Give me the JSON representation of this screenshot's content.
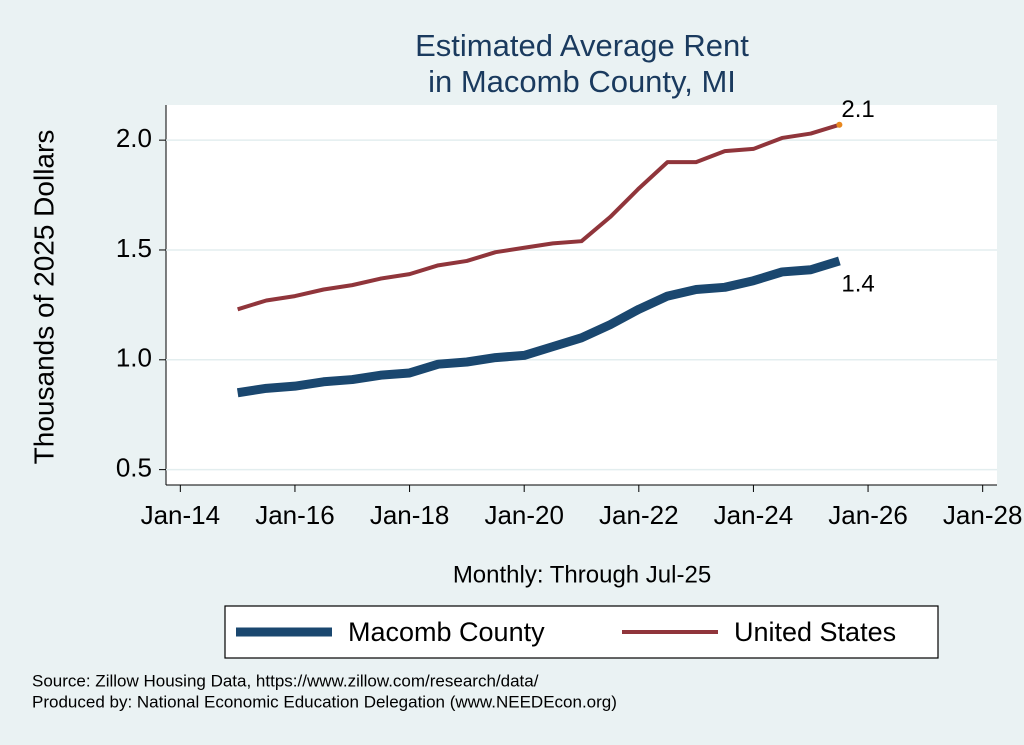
{
  "chart_data": {
    "type": "line",
    "title": [
      "Estimated Average Rent",
      "in Macomb County, MI"
    ],
    "x_label": "Monthly: Through Jul-25",
    "y_label": "Thousands of 2025 Dollars",
    "notes": [
      "Source: Zillow Housing Data, https://www.zillow.com/research/data/",
      "Produced by: National Economic Education Delegation (www.NEEDEcon.org)"
    ],
    "x": [
      "2015-01",
      "2015-07",
      "2016-01",
      "2016-07",
      "2017-01",
      "2017-07",
      "2018-01",
      "2018-07",
      "2019-01",
      "2019-07",
      "2020-01",
      "2020-07",
      "2021-01",
      "2021-07",
      "2022-01",
      "2022-07",
      "2023-01",
      "2023-07",
      "2024-01",
      "2024-07",
      "2025-01",
      "2025-07"
    ],
    "series": [
      {
        "name": "Macomb County",
        "color": "#1a476f",
        "width": 9,
        "values": [
          0.85,
          0.87,
          0.88,
          0.9,
          0.91,
          0.93,
          0.94,
          0.98,
          0.99,
          1.01,
          1.02,
          1.06,
          1.1,
          1.16,
          1.23,
          1.29,
          1.32,
          1.33,
          1.36,
          1.4,
          1.41,
          1.45
        ],
        "end_label": "1.4"
      },
      {
        "name": "United States",
        "color": "#90353b",
        "width": 4,
        "values": [
          1.23,
          1.27,
          1.29,
          1.32,
          1.34,
          1.37,
          1.39,
          1.43,
          1.45,
          1.49,
          1.51,
          1.53,
          1.54,
          1.65,
          1.78,
          1.9,
          1.9,
          1.95,
          1.96,
          2.01,
          2.03,
          2.07
        ],
        "end_label": "2.1",
        "end_marker_color": "#e8871e"
      }
    ],
    "xlim": [
      "2013-10",
      "2028-04"
    ],
    "xticks": [
      {
        "value": "2014-01",
        "label": "Jan-14"
      },
      {
        "value": "2016-01",
        "label": "Jan-16"
      },
      {
        "value": "2018-01",
        "label": "Jan-18"
      },
      {
        "value": "2020-01",
        "label": "Jan-20"
      },
      {
        "value": "2022-01",
        "label": "Jan-22"
      },
      {
        "value": "2024-01",
        "label": "Jan-24"
      },
      {
        "value": "2026-01",
        "label": "Jan-26"
      },
      {
        "value": "2028-01",
        "label": "Jan-28"
      }
    ],
    "ylim": [
      0.43,
      2.16
    ],
    "yticks": [
      0.5,
      {
        "value": 1,
        "label": "1.0"
      },
      1.5,
      {
        "value": 2,
        "label": "2.0"
      }
    ],
    "grid": true
  }
}
